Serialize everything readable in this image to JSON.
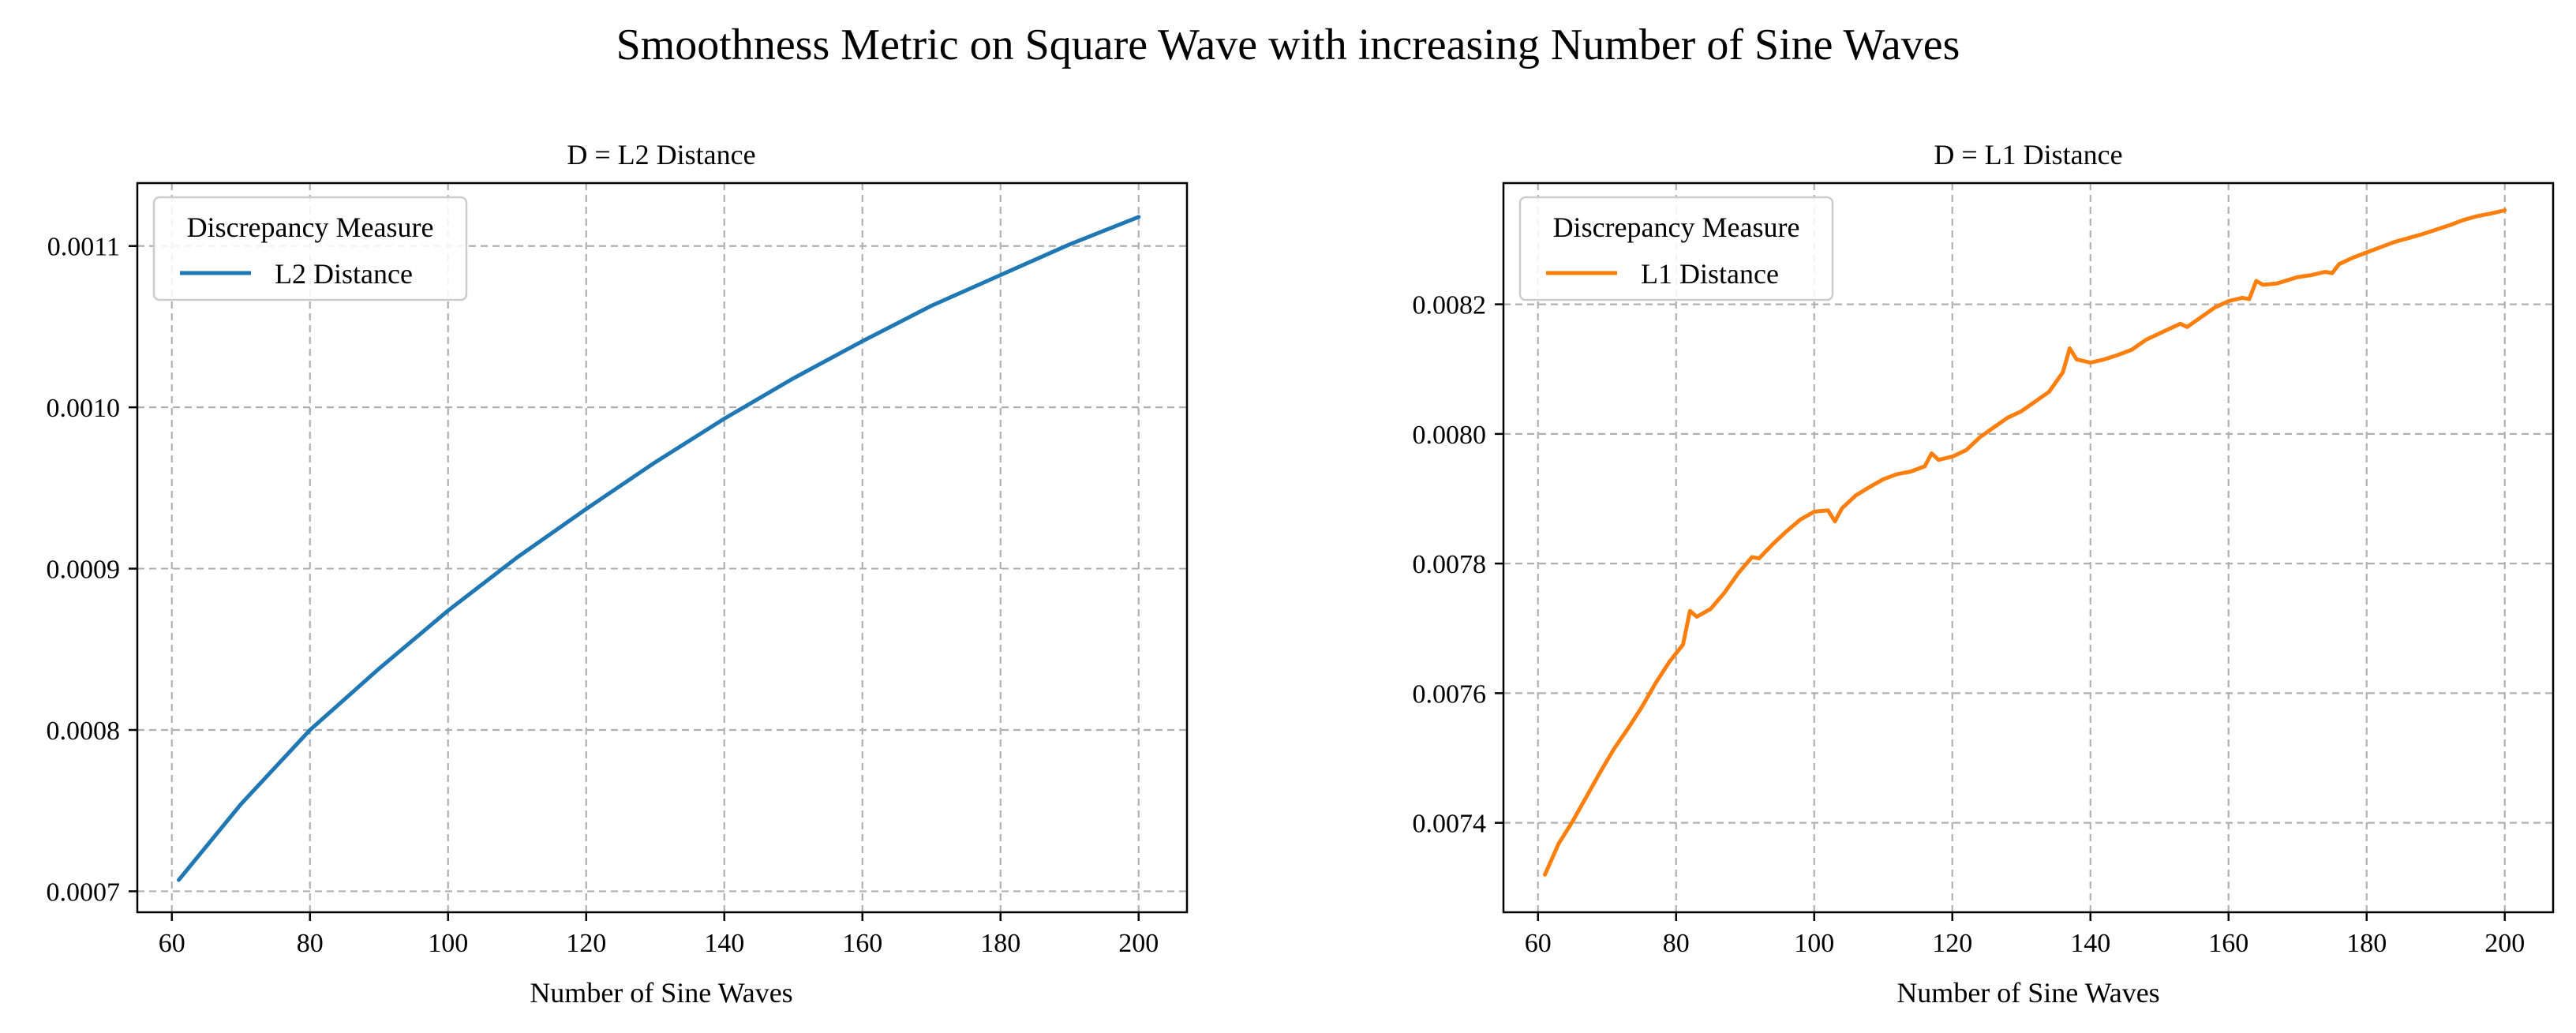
{
  "suptitle": "Smoothness Metric on Square Wave with increasing Number of Sine Waves",
  "chart_data": [
    {
      "type": "line",
      "title": "D = L2 Distance",
      "xlabel": "Number of Sine Waves",
      "ylabel": "",
      "xlim": [
        55,
        207
      ],
      "ylim": [
        0.000687,
        0.001139
      ],
      "xticks": [
        60,
        80,
        100,
        120,
        140,
        160,
        180,
        200
      ],
      "xtick_labels": [
        "60",
        "80",
        "100",
        "120",
        "140",
        "160",
        "180",
        "200"
      ],
      "yticks": [
        0.0007,
        0.0008,
        0.0009,
        0.001,
        0.0011
      ],
      "ytick_labels": [
        "0.0007",
        "0.0008",
        "0.0009",
        "0.0010",
        "0.0011"
      ],
      "grid": true,
      "legend": {
        "title": "Discrepancy Measure",
        "position": "upper-left"
      },
      "series": [
        {
          "name": "L2 Distance",
          "color": "#1f77b4",
          "x": [
            61,
            70,
            80,
            90,
            100,
            110,
            120,
            130,
            140,
            150,
            160,
            170,
            180,
            190,
            200
          ],
          "y": [
            0.000707,
            0.000754,
            0.0008,
            0.000838,
            0.000874,
            0.000907,
            0.000937,
            0.000966,
            0.000993,
            0.001018,
            0.001041,
            0.001063,
            0.001082,
            0.001101,
            0.001118
          ]
        }
      ]
    },
    {
      "type": "line",
      "title": "D = L1 Distance",
      "xlabel": "Number of Sine Waves",
      "ylabel": "",
      "xlim": [
        55,
        207
      ],
      "ylim": [
        0.007262,
        0.008387
      ],
      "xticks": [
        60,
        80,
        100,
        120,
        140,
        160,
        180,
        200
      ],
      "xtick_labels": [
        "60",
        "80",
        "100",
        "120",
        "140",
        "160",
        "180",
        "200"
      ],
      "yticks": [
        0.0074,
        0.0076,
        0.0078,
        0.008,
        0.0082
      ],
      "ytick_labels": [
        "0.0074",
        "0.0076",
        "0.0078",
        "0.0080",
        "0.0082"
      ],
      "grid": true,
      "legend": {
        "title": "Discrepancy Measure",
        "position": "upper-left"
      },
      "series": [
        {
          "name": "L1 Distance",
          "color": "#ff7f0e",
          "x": [
            61,
            63,
            65,
            67,
            69,
            71,
            73,
            75,
            77,
            79,
            81,
            82,
            83,
            85,
            87,
            89,
            91,
            92,
            94,
            96,
            98,
            100,
            102,
            103,
            104,
            106,
            108,
            110,
            112,
            114,
            116,
            117,
            118,
            120,
            122,
            124,
            126,
            128,
            130,
            132,
            134,
            136,
            137,
            138,
            140,
            142,
            144,
            146,
            148,
            150,
            152,
            153,
            154,
            156,
            158,
            160,
            162,
            163,
            164,
            165,
            167,
            170,
            172,
            174,
            175,
            176,
            178,
            180,
            182,
            184,
            186,
            188,
            190,
            192,
            194,
            196,
            198,
            200
          ],
          "y": [
            0.00732,
            0.007368,
            0.007402,
            0.00744,
            0.007478,
            0.007514,
            0.007545,
            0.007578,
            0.007615,
            0.007648,
            0.007675,
            0.007727,
            0.007718,
            0.00773,
            0.007755,
            0.007785,
            0.00781,
            0.007808,
            0.00783,
            0.00785,
            0.007868,
            0.00788,
            0.007882,
            0.007865,
            0.007885,
            0.007905,
            0.007918,
            0.00793,
            0.007938,
            0.007942,
            0.00795,
            0.00797,
            0.00796,
            0.007965,
            0.007975,
            0.007995,
            0.00801,
            0.008025,
            0.008035,
            0.00805,
            0.008065,
            0.008095,
            0.008132,
            0.008115,
            0.00811,
            0.008115,
            0.008122,
            0.00813,
            0.008145,
            0.008155,
            0.008165,
            0.00817,
            0.008165,
            0.00818,
            0.008195,
            0.008205,
            0.00821,
            0.008208,
            0.008236,
            0.00823,
            0.008232,
            0.008242,
            0.008245,
            0.00825,
            0.008248,
            0.008262,
            0.008272,
            0.00828,
            0.008288,
            0.008296,
            0.008302,
            0.008308,
            0.008315,
            0.008322,
            0.00833,
            0.008336,
            0.00834,
            0.008345
          ]
        }
      ]
    }
  ]
}
